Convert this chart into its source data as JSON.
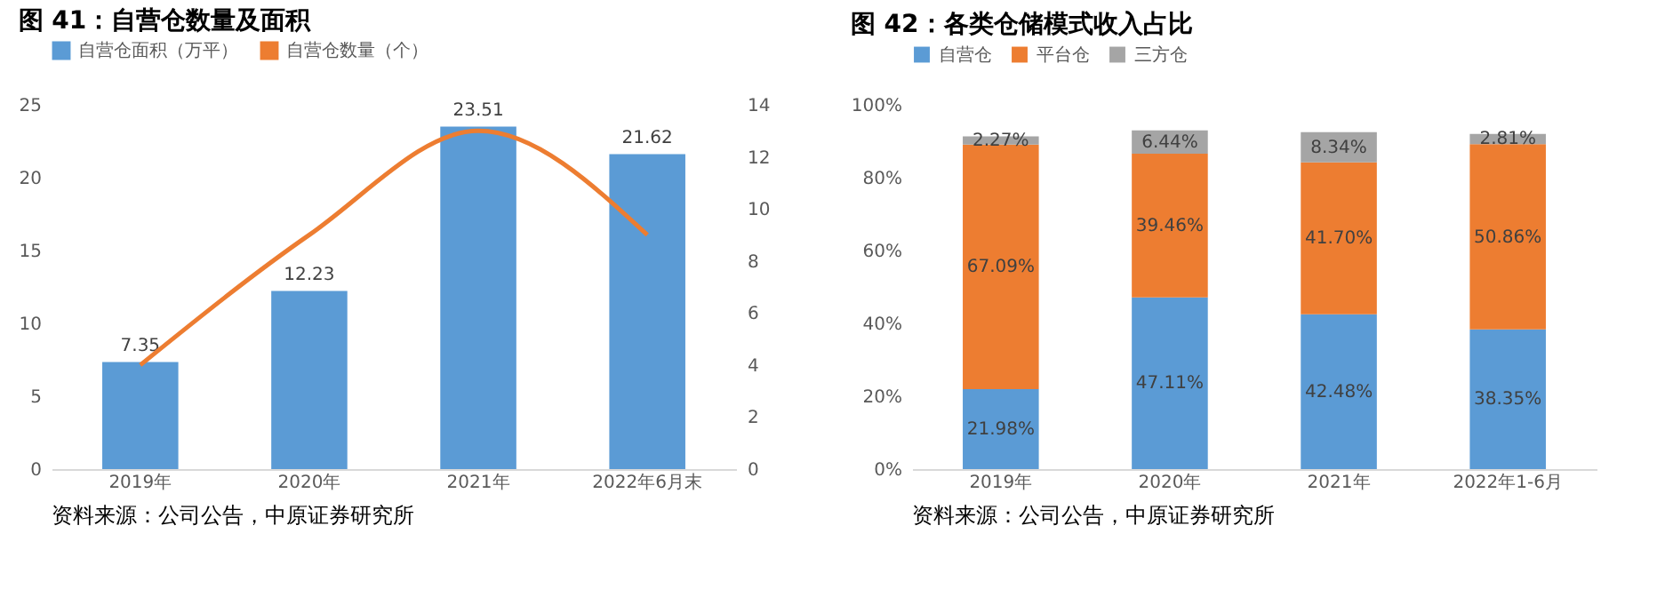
{
  "chart_data": [
    {
      "type": "bar",
      "title": "图 41：自营仓数量及面积",
      "categories": [
        "2019年",
        "2020年",
        "2021年",
        "2022年6月末"
      ],
      "series": [
        {
          "name": "自营仓面积（万平）",
          "color": "#5b9bd5",
          "values": [
            7.35,
            12.23,
            23.51,
            21.62
          ],
          "value_labels": [
            "7.35",
            "12.23",
            "23.51",
            "21.62"
          ]
        },
        {
          "name": "自营仓数量（个）",
          "color": "#ed7d31",
          "type": "line",
          "axis": "y2",
          "values": [
            4,
            9,
            13,
            9
          ]
        }
      ],
      "ylim": [
        0,
        25
      ],
      "yticks": [
        0,
        5,
        10,
        15,
        20,
        25
      ],
      "y2lim": [
        0,
        14
      ],
      "y2ticks": [
        0,
        2,
        4,
        6,
        8,
        10,
        12,
        14
      ],
      "legend": "top",
      "grid": false,
      "annotations": [
        "资料来源：公司公告，中原证券研究所"
      ]
    },
    {
      "type": "bar",
      "title": "图 42：各类仓储模式收入占比",
      "categories": [
        "2019年",
        "2020年",
        "2021年",
        "2022年1-6月"
      ],
      "stacked": true,
      "series": [
        {
          "name": "自营仓",
          "color": "#5b9bd5",
          "values": [
            21.98,
            47.11,
            42.48,
            38.35
          ],
          "value_labels": [
            "21.98%",
            "47.11%",
            "42.48%",
            "38.35%"
          ]
        },
        {
          "name": "平台仓",
          "color": "#ed7d31",
          "values": [
            67.09,
            39.46,
            41.7,
            50.86
          ],
          "value_labels": [
            "67.09%",
            "39.46%",
            "41.70%",
            "50.86%"
          ]
        },
        {
          "name": "三方仓",
          "color": "#a5a5a5",
          "values": [
            2.27,
            6.44,
            8.34,
            2.81
          ],
          "value_labels": [
            "2.27%",
            "6.44%",
            "8.34%",
            "2.81%"
          ]
        }
      ],
      "ylim": [
        0,
        100
      ],
      "yticks": [
        {
          "value": 0,
          "label": "0%"
        },
        {
          "value": 20,
          "label": "20%"
        },
        {
          "value": 40,
          "label": "40%"
        },
        {
          "value": 60,
          "label": "60%"
        },
        {
          "value": 80,
          "label": "80%"
        },
        {
          "value": 100,
          "label": "100%"
        }
      ],
      "legend": "top",
      "grid": false,
      "annotations": [
        "资料来源：公司公告，中原证券研究所"
      ]
    }
  ]
}
